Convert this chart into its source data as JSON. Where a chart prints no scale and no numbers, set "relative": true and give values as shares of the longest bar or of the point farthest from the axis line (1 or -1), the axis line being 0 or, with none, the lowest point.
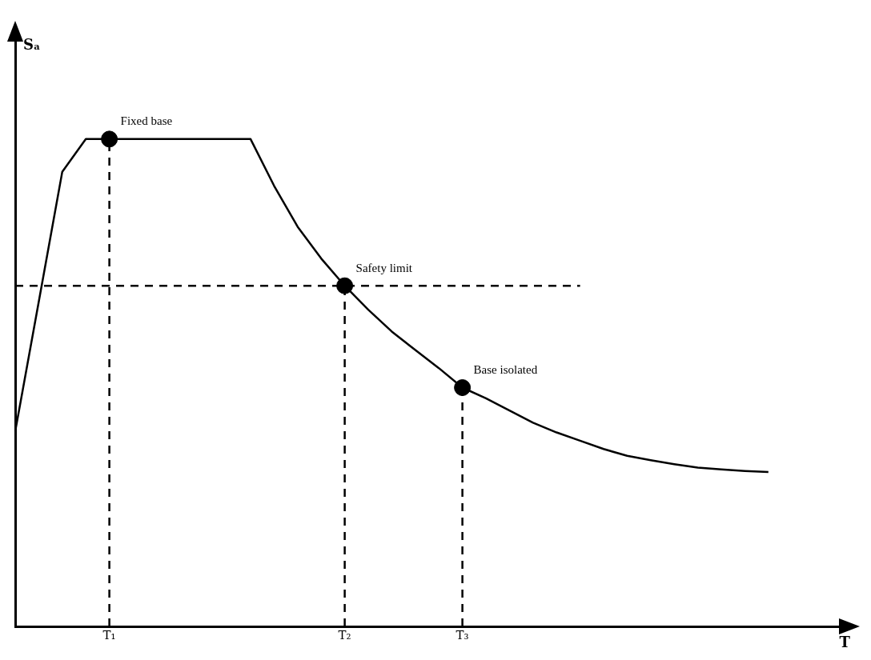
{
  "chart_data": {
    "type": "line",
    "relative": true,
    "xlabel": "T",
    "grid": false,
    "legend": false,
    "tick_labels": "x",
    "categories": [
      null,
      null,
      null,
      null,
      "T₁",
      null,
      null,
      null,
      null,
      null,
      null,
      null,
      null,
      null,
      "T₂",
      null,
      null,
      null,
      null,
      "T₃",
      null,
      null,
      null,
      null,
      null,
      null,
      null,
      null,
      null,
      null,
      null,
      null,
      null,
      null,
      null,
      null
    ],
    "series": [
      {
        "color": "#000000",
        "marker": "none",
        "line_style": "solid",
        "values": [
          0.4,
          0.666,
          0.933,
          1,
          1,
          1,
          1,
          1,
          1,
          1,
          1,
          0.904,
          0.82,
          0.755,
          0.699,
          0.65,
          0.605,
          0.567,
          0.53,
          0.49,
          0.468,
          0.443,
          0.418,
          0.398,
          0.381,
          0.364,
          0.35,
          0.341,
          0.333,
          0.326,
          0.322,
          0.319,
          0.317,
          null,
          null,
          null
        ]
      },
      {
        "type": "line",
        "color": "#000000",
        "marker": "none",
        "line_style": "dashed",
        "values": [
          0.699,
          0.699,
          0.699,
          0.699,
          0.699,
          0.699,
          0.699,
          0.699,
          0.699,
          0.699,
          0.699,
          0.699,
          0.699,
          0.699,
          0.699,
          0.699,
          0.699,
          0.699,
          0.699,
          0.699,
          0.699,
          0.699,
          0.699,
          0.699,
          0.699,
          null,
          null,
          null,
          null,
          null,
          null,
          null,
          null,
          null,
          null,
          null
        ]
      },
      {
        "type": "line",
        "color": "#000000",
        "marker": "none",
        "line_style": "dashed",
        "x": [
          "T₁",
          "T₁"
        ],
        "values": [
          0,
          1
        ]
      },
      {
        "type": "line",
        "color": "#000000",
        "marker": "none",
        "line_style": "dashed",
        "x": [
          "T₂",
          "T₂"
        ],
        "values": [
          0,
          0.699
        ]
      },
      {
        "type": "line",
        "color": "#000000",
        "marker": "none",
        "line_style": "dashed",
        "x": [
          "T₃",
          "T₃"
        ],
        "values": [
          0,
          0.49
        ]
      },
      {
        "type": "scatter",
        "color": "#000000",
        "marker": "circle",
        "x": [
          "T₁",
          "T₂",
          "T₃"
        ],
        "values": [
          1,
          0.699,
          0.49
        ]
      }
    ],
    "annotations": [
      "Sₐ",
      {
        "text": "Fixed base",
        "x": "T₁",
        "y": 1
      },
      {
        "text": "Safety limit",
        "x": "T₂",
        "y": 0.699
      },
      {
        "text": "Base isolated",
        "x": "T₃",
        "y": 0.49
      }
    ]
  }
}
